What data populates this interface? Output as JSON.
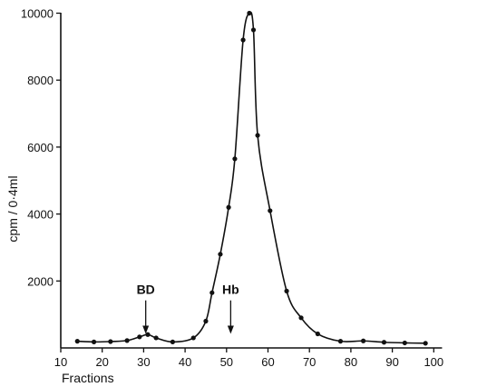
{
  "chart_data": {
    "type": "line",
    "title": "",
    "xlabel": "Fractions",
    "ylabel": "cpm / 0·4ml",
    "xlim": [
      10,
      102
    ],
    "ylim": [
      0,
      10000
    ],
    "xticks": [
      10,
      20,
      30,
      40,
      50,
      60,
      70,
      80,
      90,
      100
    ],
    "yticks": [
      2000,
      4000,
      6000,
      8000,
      10000
    ],
    "grid": false,
    "series": [
      {
        "x": [
          14,
          18,
          22,
          26,
          29,
          31,
          33,
          37,
          42,
          45,
          46.5,
          48.5,
          50.5,
          52,
          54,
          55.5,
          56.5,
          57.5,
          60.5,
          64.5,
          68,
          72,
          77.5,
          83,
          88,
          93,
          98
        ],
        "y": [
          200,
          180,
          190,
          220,
          330,
          400,
          300,
          180,
          300,
          800,
          1650,
          2800,
          4200,
          5650,
          9200,
          10000,
          9500,
          6350,
          4100,
          1700,
          900,
          420,
          200,
          210,
          170,
          150,
          140
        ]
      }
    ],
    "annotations": [
      {
        "text": "BD",
        "x": 30.5,
        "arrow_y_top": 1420,
        "arrow_y_bottom": 420
      },
      {
        "text": "Hb",
        "x": 51,
        "arrow_y_top": 1420,
        "arrow_y_bottom": 420
      }
    ]
  }
}
